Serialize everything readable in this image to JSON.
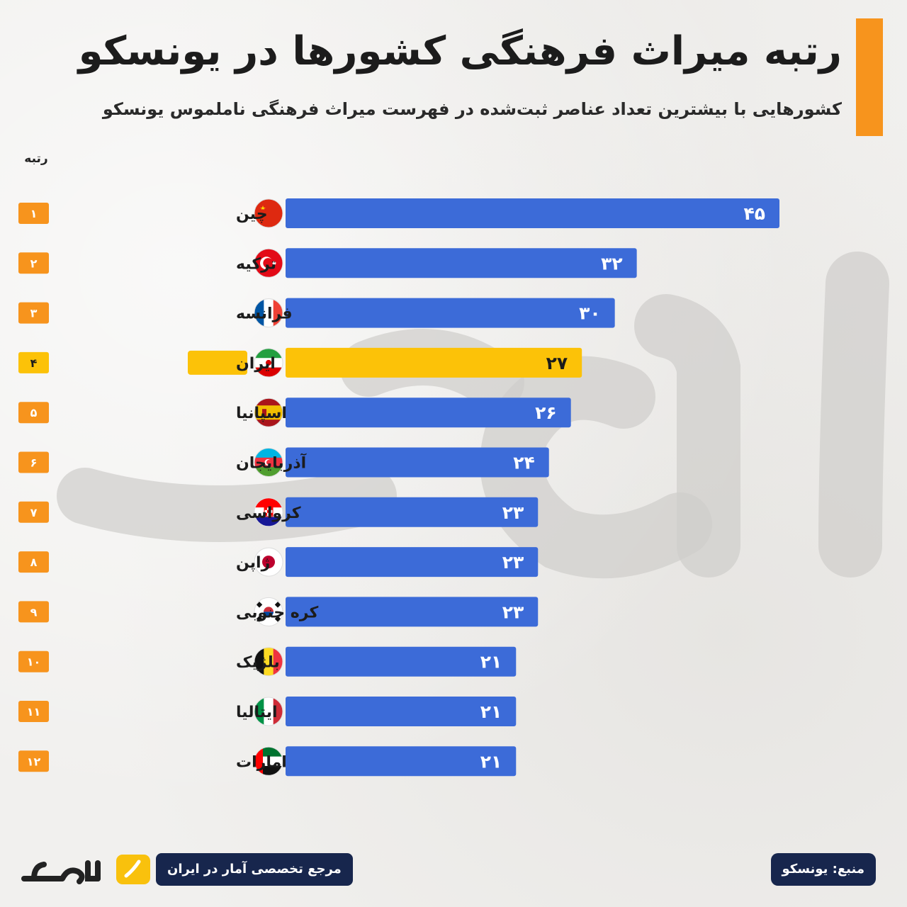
{
  "title": "رتبه میراث فرهنگی کشورها در یونسکو",
  "subtitle": "کشورهایی با بیشترین تعداد عناصر ثبت‌شده در فهرست میراث فرهنگی ناملموس یونسکو",
  "rank_header": "رتبه",
  "colors": {
    "bar": "#3c6bd8",
    "highlight": "#fcc208",
    "rank_badge": "#f7941d",
    "accent": "#f7941d",
    "pill": "#17264d"
  },
  "chart_data": {
    "type": "bar",
    "orientation": "horizontal",
    "categories": [
      "چین",
      "ترکیه",
      "فرانسه",
      "ایران",
      "اسپانیا",
      "آذربایجان",
      "کرواسی",
      "ژاپن",
      "کره جنوبی",
      "بلژیک",
      "ایتالیا",
      "امارات"
    ],
    "values": [
      45,
      32,
      30,
      27,
      26,
      24,
      23,
      23,
      23,
      21,
      21,
      21
    ],
    "value_labels": [
      "۴۵",
      "۳۲",
      "۳۰",
      "۲۷",
      "۲۶",
      "۲۴",
      "۲۳",
      "۲۳",
      "۲۳",
      "۲۱",
      "۲۱",
      "۲۱"
    ],
    "ranks": [
      "۱",
      "۲",
      "۳",
      "۴",
      "۵",
      "۶",
      "۷",
      "۸",
      "۹",
      "۱۰",
      "۱۱",
      "۱۲"
    ],
    "flags": [
      "china-flag",
      "turkey-flag",
      "france-flag",
      "iran-flag",
      "spain-flag",
      "azerbaijan-flag",
      "croatia-flag",
      "japan-flag",
      "south-korea-flag",
      "belgium-flag",
      "italy-flag",
      "uae-flag"
    ],
    "highlight": "ایران",
    "xlim": [
      0,
      45
    ],
    "grid": false,
    "legend": false
  },
  "footer": {
    "logo_text": "آمارفکت",
    "tagline": "مرجع تخصصی آمار در ایران",
    "source": "منبع: یونسکو"
  }
}
